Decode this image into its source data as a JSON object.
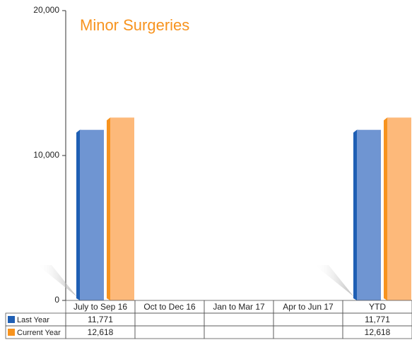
{
  "chart_data": {
    "type": "bar3d",
    "title": "Minor Surgeries",
    "categories": [
      "July to Sep 16",
      "Oct to Dec 16",
      "Jan to Mar 17",
      "Apr to Jun 17",
      "YTD"
    ],
    "series": [
      {
        "name": "Last Year",
        "color": "#1f5fb4",
        "values": [
          11771,
          null,
          null,
          null,
          11771
        ],
        "value_labels": [
          "11,771",
          null,
          null,
          null,
          "11,771"
        ]
      },
      {
        "name": "Current Year",
        "color": "#f7931e",
        "values": [
          12618,
          null,
          null,
          null,
          12618
        ],
        "value_labels": [
          "12,618",
          null,
          null,
          null,
          "12,618"
        ]
      }
    ],
    "ylim": [
      0,
      20000
    ],
    "yticks": [
      0,
      {
        "value": 10000,
        "label": "10,000"
      },
      {
        "value": 20000,
        "label": "20,000"
      }
    ]
  }
}
